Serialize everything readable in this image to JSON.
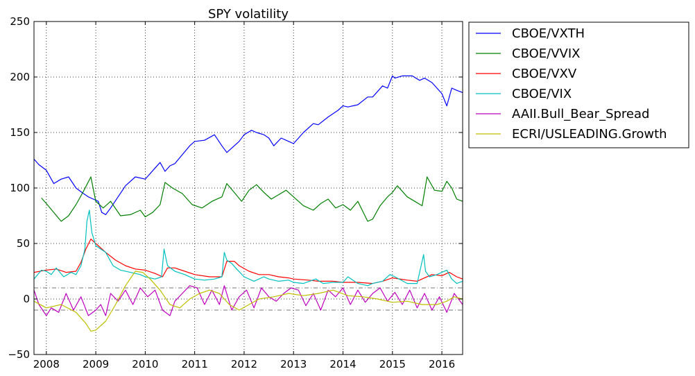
{
  "chart_data": {
    "type": "line",
    "title": "SPY volatility",
    "xlabel": "",
    "ylabel": "",
    "xlim": [
      2007.75,
      2016.42
    ],
    "ylim": [
      -50,
      250
    ],
    "x_ticks": [
      "2008",
      "2009",
      "2010",
      "2011",
      "2012",
      "2013",
      "2014",
      "2015",
      "2016"
    ],
    "y_ticks": [
      "250",
      "200",
      "150",
      "100",
      "50",
      "0",
      "−50"
    ],
    "grid": true,
    "legend_position": "outside-top-right",
    "reference_lines": [
      10,
      -10
    ],
    "series": [
      {
        "name": "CBOE/VXTH",
        "color": "#0000ff",
        "x": [
          2007.75,
          2007.85,
          2008.0,
          2008.15,
          2008.3,
          2008.45,
          2008.6,
          2008.75,
          2008.85,
          2008.95,
          2009.05,
          2009.12,
          2009.2,
          2009.3,
          2009.45,
          2009.6,
          2009.8,
          2010.0,
          2010.2,
          2010.3,
          2010.4,
          2010.5,
          2010.6,
          2010.75,
          2010.9,
          2011.0,
          2011.2,
          2011.4,
          2011.55,
          2011.65,
          2011.75,
          2011.9,
          2012.0,
          2012.15,
          2012.25,
          2012.4,
          2012.5,
          2012.6,
          2012.75,
          2012.9,
          2013.0,
          2013.2,
          2013.4,
          2013.5,
          2013.7,
          2013.9,
          2014.0,
          2014.1,
          2014.3,
          2014.5,
          2014.6,
          2014.8,
          2014.9,
          2015.0,
          2015.05,
          2015.2,
          2015.4,
          2015.55,
          2015.65,
          2015.8,
          2016.0,
          2016.1,
          2016.2,
          2016.3,
          2016.42
        ],
        "values": [
          126,
          121,
          116,
          104,
          108,
          110,
          100,
          95,
          92,
          90,
          88,
          78,
          76,
          82,
          92,
          102,
          110,
          108,
          118,
          123,
          115,
          120,
          122,
          130,
          138,
          142,
          143,
          148,
          138,
          132,
          136,
          142,
          148,
          152,
          150,
          148,
          145,
          138,
          145,
          142,
          140,
          150,
          158,
          157,
          164,
          170,
          174,
          173,
          175,
          182,
          182,
          192,
          190,
          201,
          199,
          201,
          201,
          197,
          199,
          195,
          185,
          174,
          190,
          188,
          186
        ]
      },
      {
        "name": "CBOE/VVIX",
        "color": "#008000",
        "x": [
          2007.9,
          2008.0,
          2008.15,
          2008.3,
          2008.45,
          2008.6,
          2008.75,
          2008.9,
          2009.0,
          2009.15,
          2009.3,
          2009.5,
          2009.7,
          2009.9,
          2010.0,
          2010.15,
          2010.3,
          2010.4,
          2010.55,
          2010.75,
          2010.95,
          2011.15,
          2011.35,
          2011.55,
          2011.65,
          2011.8,
          2011.95,
          2012.1,
          2012.25,
          2012.4,
          2012.55,
          2012.7,
          2012.85,
          2013.0,
          2013.2,
          2013.4,
          2013.55,
          2013.7,
          2013.85,
          2014.0,
          2014.15,
          2014.3,
          2014.5,
          2014.6,
          2014.75,
          2014.9,
          2015.0,
          2015.1,
          2015.3,
          2015.45,
          2015.6,
          2015.7,
          2015.85,
          2016.0,
          2016.1,
          2016.2,
          2016.3,
          2016.42
        ],
        "values": [
          91,
          86,
          78,
          70,
          75,
          85,
          97,
          110,
          88,
          82,
          88,
          75,
          76,
          80,
          74,
          78,
          85,
          105,
          100,
          95,
          85,
          82,
          88,
          92,
          104,
          96,
          88,
          98,
          103,
          96,
          90,
          94,
          98,
          92,
          84,
          80,
          86,
          90,
          82,
          85,
          80,
          88,
          70,
          72,
          84,
          92,
          96,
          102,
          92,
          88,
          84,
          110,
          98,
          97,
          106,
          100,
          90,
          88
        ]
      },
      {
        "name": "CBOE/VXV",
        "color": "#ff0000",
        "x": [
          2007.75,
          2008.0,
          2008.2,
          2008.4,
          2008.6,
          2008.7,
          2008.8,
          2008.9,
          2009.0,
          2009.2,
          2009.4,
          2009.6,
          2009.8,
          2010.0,
          2010.2,
          2010.35,
          2010.45,
          2010.6,
          2010.8,
          2011.0,
          2011.3,
          2011.55,
          2011.65,
          2011.8,
          2011.9,
          2012.1,
          2012.3,
          2012.5,
          2012.7,
          2012.9,
          2013.0,
          2013.3,
          2013.5,
          2013.8,
          2014.0,
          2014.3,
          2014.6,
          2014.8,
          2015.0,
          2015.3,
          2015.5,
          2015.65,
          2015.8,
          2016.0,
          2016.15,
          2016.3,
          2016.42
        ],
        "values": [
          24,
          26,
          27,
          24,
          25,
          33,
          45,
          54,
          50,
          42,
          35,
          30,
          27,
          26,
          23,
          20,
          28,
          28,
          25,
          22,
          20,
          20,
          34,
          34,
          30,
          25,
          22,
          22,
          20,
          19,
          18,
          17,
          16,
          16,
          15,
          15,
          14,
          16,
          19,
          17,
          16,
          19,
          22,
          21,
          24,
          20,
          18
        ]
      },
      {
        "name": "CBOE/VIX",
        "color": "#00bfbf",
        "x": [
          2007.75,
          2007.9,
          2008.0,
          2008.1,
          2008.2,
          2008.35,
          2008.5,
          2008.6,
          2008.7,
          2008.78,
          2008.82,
          2008.87,
          2008.92,
          2009.0,
          2009.1,
          2009.2,
          2009.35,
          2009.5,
          2009.7,
          2009.9,
          2010.0,
          2010.2,
          2010.33,
          2010.38,
          2010.45,
          2010.6,
          2010.8,
          2011.0,
          2011.2,
          2011.4,
          2011.55,
          2011.6,
          2011.65,
          2011.75,
          2011.85,
          2012.0,
          2012.2,
          2012.4,
          2012.5,
          2012.7,
          2012.9,
          2013.0,
          2013.2,
          2013.45,
          2013.6,
          2013.8,
          2014.0,
          2014.1,
          2014.3,
          2014.5,
          2014.6,
          2014.8,
          2014.95,
          2015.05,
          2015.3,
          2015.5,
          2015.63,
          2015.67,
          2015.75,
          2015.9,
          2016.0,
          2016.1,
          2016.2,
          2016.3,
          2016.42
        ],
        "values": [
          18,
          26,
          25,
          22,
          28,
          20,
          24,
          22,
          30,
          45,
          70,
          80,
          60,
          48,
          45,
          42,
          30,
          26,
          24,
          22,
          20,
          18,
          20,
          45,
          30,
          25,
          22,
          18,
          17,
          18,
          20,
          42,
          35,
          32,
          27,
          20,
          16,
          20,
          18,
          16,
          17,
          15,
          14,
          18,
          14,
          15,
          15,
          20,
          14,
          12,
          14,
          16,
          22,
          20,
          14,
          14,
          40,
          25,
          20,
          22,
          24,
          26,
          18,
          14,
          16
        ]
      },
      {
        "name": "AAII.Bull_Bear_Spread",
        "color": "#bf00bf",
        "x": [
          2007.75,
          2007.85,
          2008.0,
          2008.1,
          2008.25,
          2008.4,
          2008.55,
          2008.7,
          2008.85,
          2009.0,
          2009.1,
          2009.2,
          2009.3,
          2009.45,
          2009.6,
          2009.75,
          2009.9,
          2010.05,
          2010.2,
          2010.35,
          2010.5,
          2010.6,
          2010.75,
          2010.9,
          2011.05,
          2011.2,
          2011.35,
          2011.5,
          2011.6,
          2011.75,
          2011.9,
          2012.05,
          2012.2,
          2012.35,
          2012.5,
          2012.65,
          2012.8,
          2012.95,
          2013.1,
          2013.25,
          2013.4,
          2013.55,
          2013.7,
          2013.85,
          2014.0,
          2014.15,
          2014.3,
          2014.45,
          2014.6,
          2014.75,
          2014.9,
          2015.05,
          2015.2,
          2015.35,
          2015.5,
          2015.65,
          2015.8,
          2015.95,
          2016.1,
          2016.25,
          2016.42
        ],
        "values": [
          8,
          -5,
          -15,
          -8,
          -12,
          5,
          -10,
          2,
          -15,
          -10,
          -5,
          -15,
          5,
          -2,
          8,
          -5,
          10,
          2,
          8,
          -10,
          -15,
          -2,
          5,
          12,
          10,
          -5,
          8,
          -5,
          12,
          -10,
          2,
          8,
          -8,
          10,
          2,
          -2,
          5,
          10,
          8,
          -6,
          5,
          -10,
          8,
          2,
          10,
          -5,
          8,
          -3,
          5,
          10,
          -2,
          6,
          -5,
          8,
          -8,
          5,
          -10,
          2,
          -12,
          5,
          -5
        ]
      },
      {
        "name": "ECRI/USLEADING.Growth",
        "color": "#bfbf00",
        "x": [
          2007.75,
          2008.0,
          2008.3,
          2008.6,
          2008.8,
          2008.9,
          2009.0,
          2009.2,
          2009.4,
          2009.6,
          2009.8,
          2009.95,
          2010.1,
          2010.3,
          2010.5,
          2010.7,
          2010.9,
          2011.1,
          2011.3,
          2011.5,
          2011.7,
          2011.9,
          2012.1,
          2012.3,
          2012.6,
          2012.9,
          2013.2,
          2013.5,
          2013.8,
          2014.1,
          2014.4,
          2014.7,
          2015.0,
          2015.3,
          2015.6,
          2015.9,
          2016.1,
          2016.25,
          2016.42
        ],
        "values": [
          -2,
          -8,
          -5,
          -12,
          -22,
          -29,
          -28,
          -20,
          -5,
          12,
          25,
          24,
          18,
          8,
          -5,
          -8,
          0,
          5,
          8,
          5,
          -5,
          -10,
          -5,
          0,
          2,
          5,
          3,
          5,
          8,
          3,
          2,
          0,
          -3,
          -2,
          -5,
          -5,
          -2,
          2,
          0
        ]
      }
    ]
  }
}
